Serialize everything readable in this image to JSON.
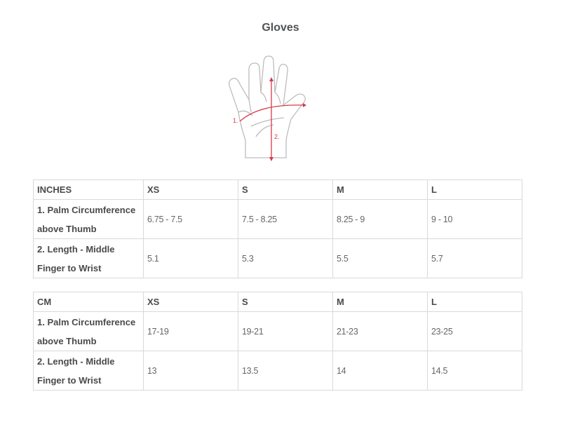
{
  "title": "Gloves",
  "illustration": {
    "label_1": "1.",
    "label_2": "2.",
    "accent_color": "#d9384a"
  },
  "tables": [
    {
      "unit": "INCHES",
      "sizes": [
        "XS",
        "S",
        "M",
        "L"
      ],
      "rows": [
        {
          "label": "1. Palm Circumference above Thumb",
          "values": [
            "6.75 - 7.5",
            "7.5 - 8.25",
            "8.25 - 9",
            "9 - 10"
          ]
        },
        {
          "label": "2. Length - Middle Finger to Wrist",
          "values": [
            "5.1",
            "5.3",
            "5.5",
            "5.7"
          ]
        }
      ]
    },
    {
      "unit": "CM",
      "sizes": [
        "XS",
        "S",
        "M",
        "L"
      ],
      "rows": [
        {
          "label": "1. Palm Circumference above Thumb",
          "values": [
            "17-19",
            "19-21",
            "21-23",
            "23-25"
          ]
        },
        {
          "label": "2. Length - Middle Finger to Wrist",
          "values": [
            "13",
            "13.5",
            "14",
            "14.5"
          ]
        }
      ]
    }
  ]
}
